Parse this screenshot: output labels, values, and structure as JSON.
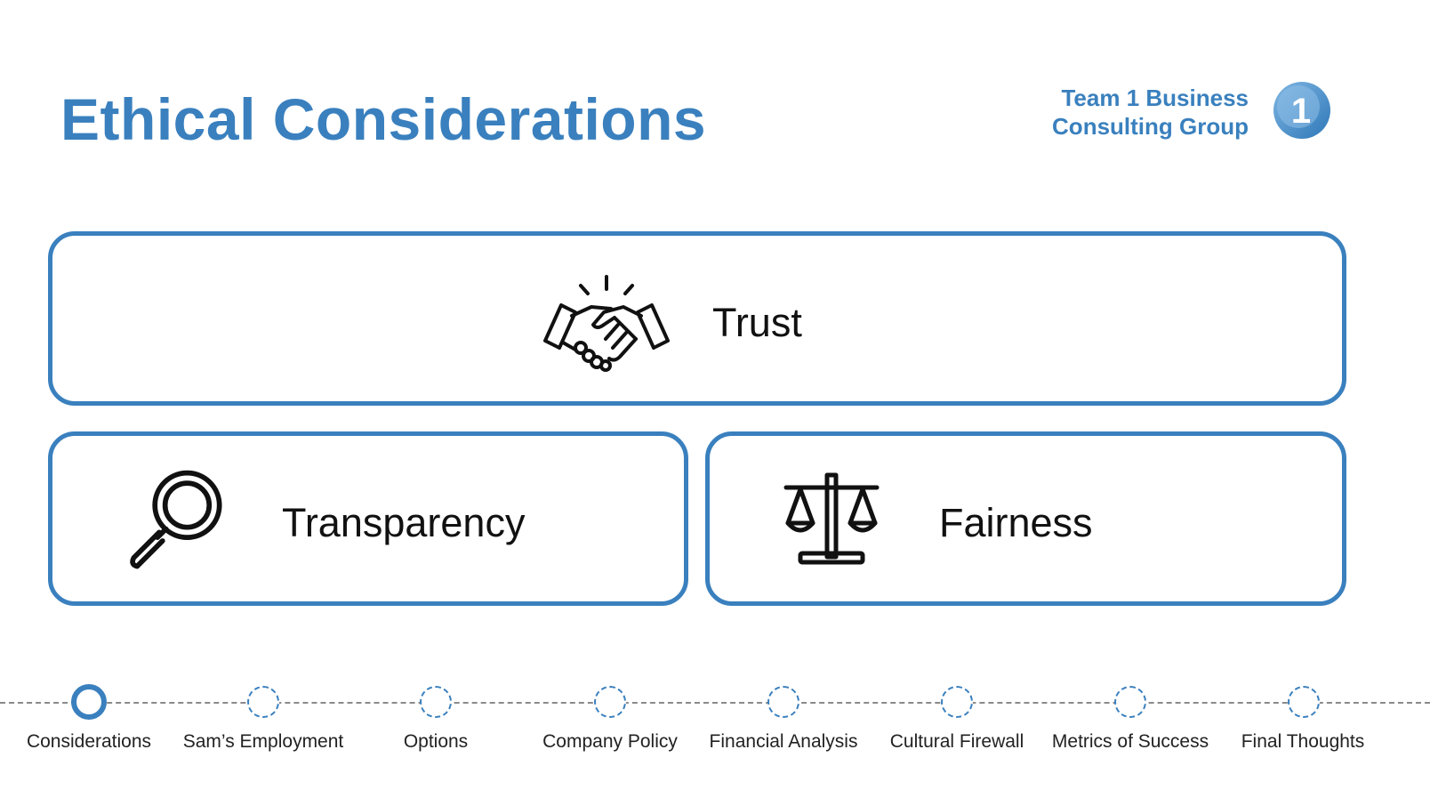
{
  "slide": {
    "title": "Ethical Considerations",
    "brand": {
      "line1": "Team 1 Business",
      "line2": "Consulting Group",
      "logo_text": "1"
    },
    "accent_color": "#3a80be"
  },
  "cards": {
    "trust": {
      "label": "Trust",
      "icon": "handshake-icon"
    },
    "transparency": {
      "label": "Transparency",
      "icon": "magnifying-glass-icon"
    },
    "fairness": {
      "label": "Fairness",
      "icon": "scales-icon"
    }
  },
  "timeline": {
    "active_index": 0,
    "items": [
      {
        "label": "Considerations"
      },
      {
        "label": "Sam’s Employment"
      },
      {
        "label": "Options"
      },
      {
        "label": "Company Policy"
      },
      {
        "label": "Financial Analysis"
      },
      {
        "label": "Cultural Firewall"
      },
      {
        "label": "Metrics of Success"
      },
      {
        "label": "Final Thoughts"
      }
    ]
  }
}
